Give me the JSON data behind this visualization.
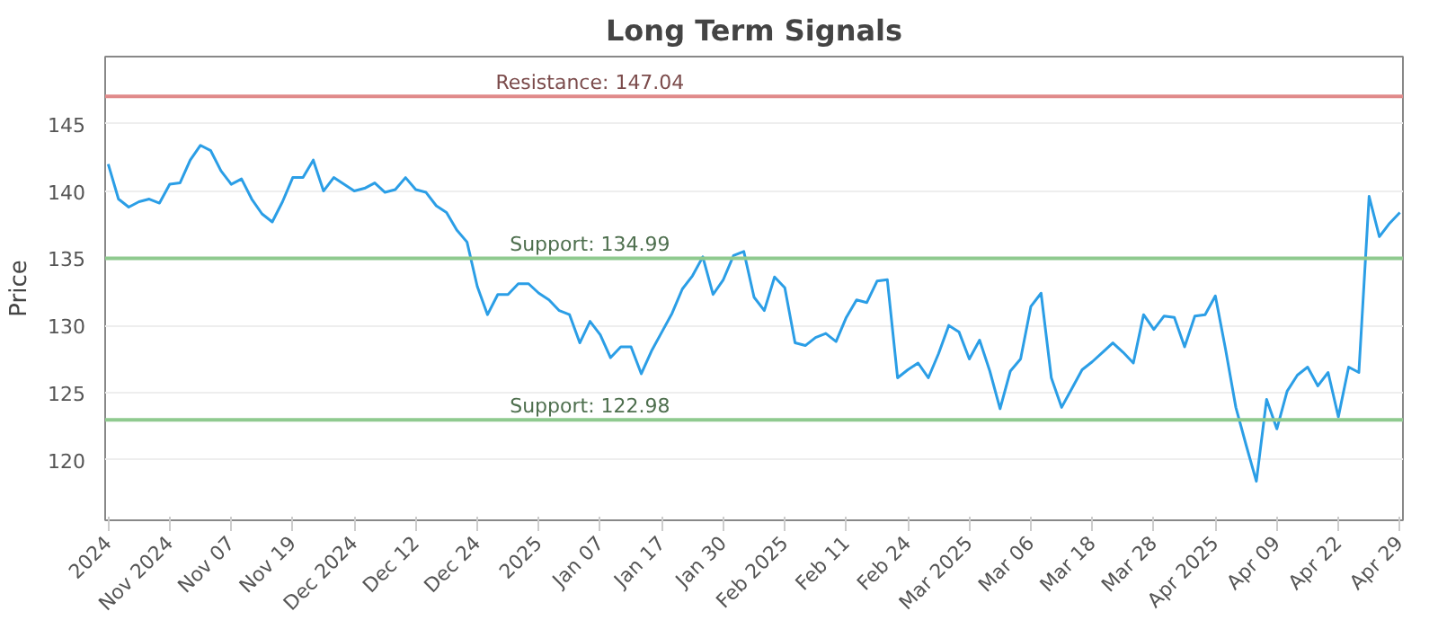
{
  "chart_data": {
    "type": "line",
    "title": "Long Term Signals",
    "ylabel": "Price",
    "categories": [
      "2024",
      null,
      null,
      null,
      null,
      null,
      "Nov 2024",
      null,
      null,
      null,
      null,
      null,
      "Nov 07",
      null,
      null,
      null,
      null,
      null,
      "Nov 19",
      null,
      null,
      null,
      null,
      null,
      "Dec 2024",
      null,
      null,
      null,
      null,
      null,
      "Dec 12",
      null,
      null,
      null,
      null,
      null,
      "Dec 24",
      null,
      null,
      null,
      null,
      null,
      "2025",
      null,
      null,
      null,
      null,
      null,
      "Jan 07",
      null,
      null,
      null,
      null,
      null,
      "Jan 17",
      null,
      null,
      null,
      null,
      null,
      "Jan 30",
      null,
      null,
      null,
      null,
      null,
      "Feb 2025",
      null,
      null,
      null,
      null,
      null,
      "Feb 11",
      null,
      null,
      null,
      null,
      null,
      "Feb 24",
      null,
      null,
      null,
      null,
      null,
      "Mar 2025",
      null,
      null,
      null,
      null,
      null,
      "Mar 06",
      null,
      null,
      null,
      null,
      null,
      "Mar 18",
      null,
      null,
      null,
      null,
      null,
      "Mar 28",
      null,
      null,
      null,
      null,
      null,
      "Apr 2025",
      null,
      null,
      null,
      null,
      null,
      "Apr 09",
      null,
      null,
      null,
      null,
      null,
      "Apr 22",
      null,
      null,
      null,
      null,
      null,
      "Apr 29"
    ],
    "series": [
      {
        "color": "#2b9ee6",
        "values": [
          142.0,
          139.4,
          138.8,
          139.2,
          139.4,
          139.1,
          140.5,
          140.6,
          142.3,
          143.4,
          143.0,
          141.5,
          140.5,
          140.9,
          139.4,
          138.3,
          137.7,
          139.2,
          141.0,
          141.0,
          142.3,
          140.0,
          141.0,
          140.5,
          140.0,
          140.2,
          140.6,
          139.9,
          140.1,
          141.0,
          140.1,
          139.9,
          138.9,
          138.4,
          137.1,
          136.2,
          132.9,
          130.8,
          132.3,
          132.3,
          133.1,
          133.1,
          132.4,
          131.9,
          131.1,
          130.8,
          128.7,
          130.3,
          129.3,
          127.6,
          128.4,
          128.4,
          126.4,
          128.1,
          129.5,
          130.9,
          132.7,
          133.7,
          135.1,
          132.3,
          133.4,
          135.2,
          135.5,
          132.1,
          131.1,
          133.6,
          132.8,
          128.7,
          128.5,
          129.1,
          129.4,
          128.8,
          130.6,
          131.9,
          131.7,
          133.3,
          133.4,
          126.1,
          126.7,
          127.2,
          126.1,
          127.9,
          130.0,
          129.5,
          127.5,
          128.9,
          126.6,
          123.8,
          126.6,
          127.5,
          131.4,
          132.4,
          126.1,
          123.9,
          125.3,
          126.7,
          127.3,
          128.0,
          128.7,
          128.0,
          127.2,
          130.8,
          129.7,
          130.7,
          130.6,
          128.4,
          130.7,
          130.8,
          132.2,
          128.2,
          123.9,
          121.1,
          118.4,
          124.5,
          122.3,
          125.1,
          126.3,
          126.9,
          125.5,
          126.5,
          123.2,
          126.9,
          126.5,
          139.6,
          136.6,
          137.6,
          138.4
        ]
      }
    ],
    "ylim": [
      115.5,
      150
    ],
    "yticks": [
      120,
      125,
      130,
      135,
      140,
      145
    ],
    "grid": "y",
    "marker": "none",
    "line_style": "solid",
    "ref_lines": [
      {
        "axis": "y",
        "value": 147.04,
        "label": "Resistance: 147.04",
        "color": "#e08a8a"
      },
      {
        "axis": "y",
        "value": 134.99,
        "label": "Support: 134.99",
        "color": "#8fca8f"
      },
      {
        "axis": "y",
        "value": 122.98,
        "label": "Support: 122.98",
        "color": "#8fca8f"
      }
    ]
  }
}
